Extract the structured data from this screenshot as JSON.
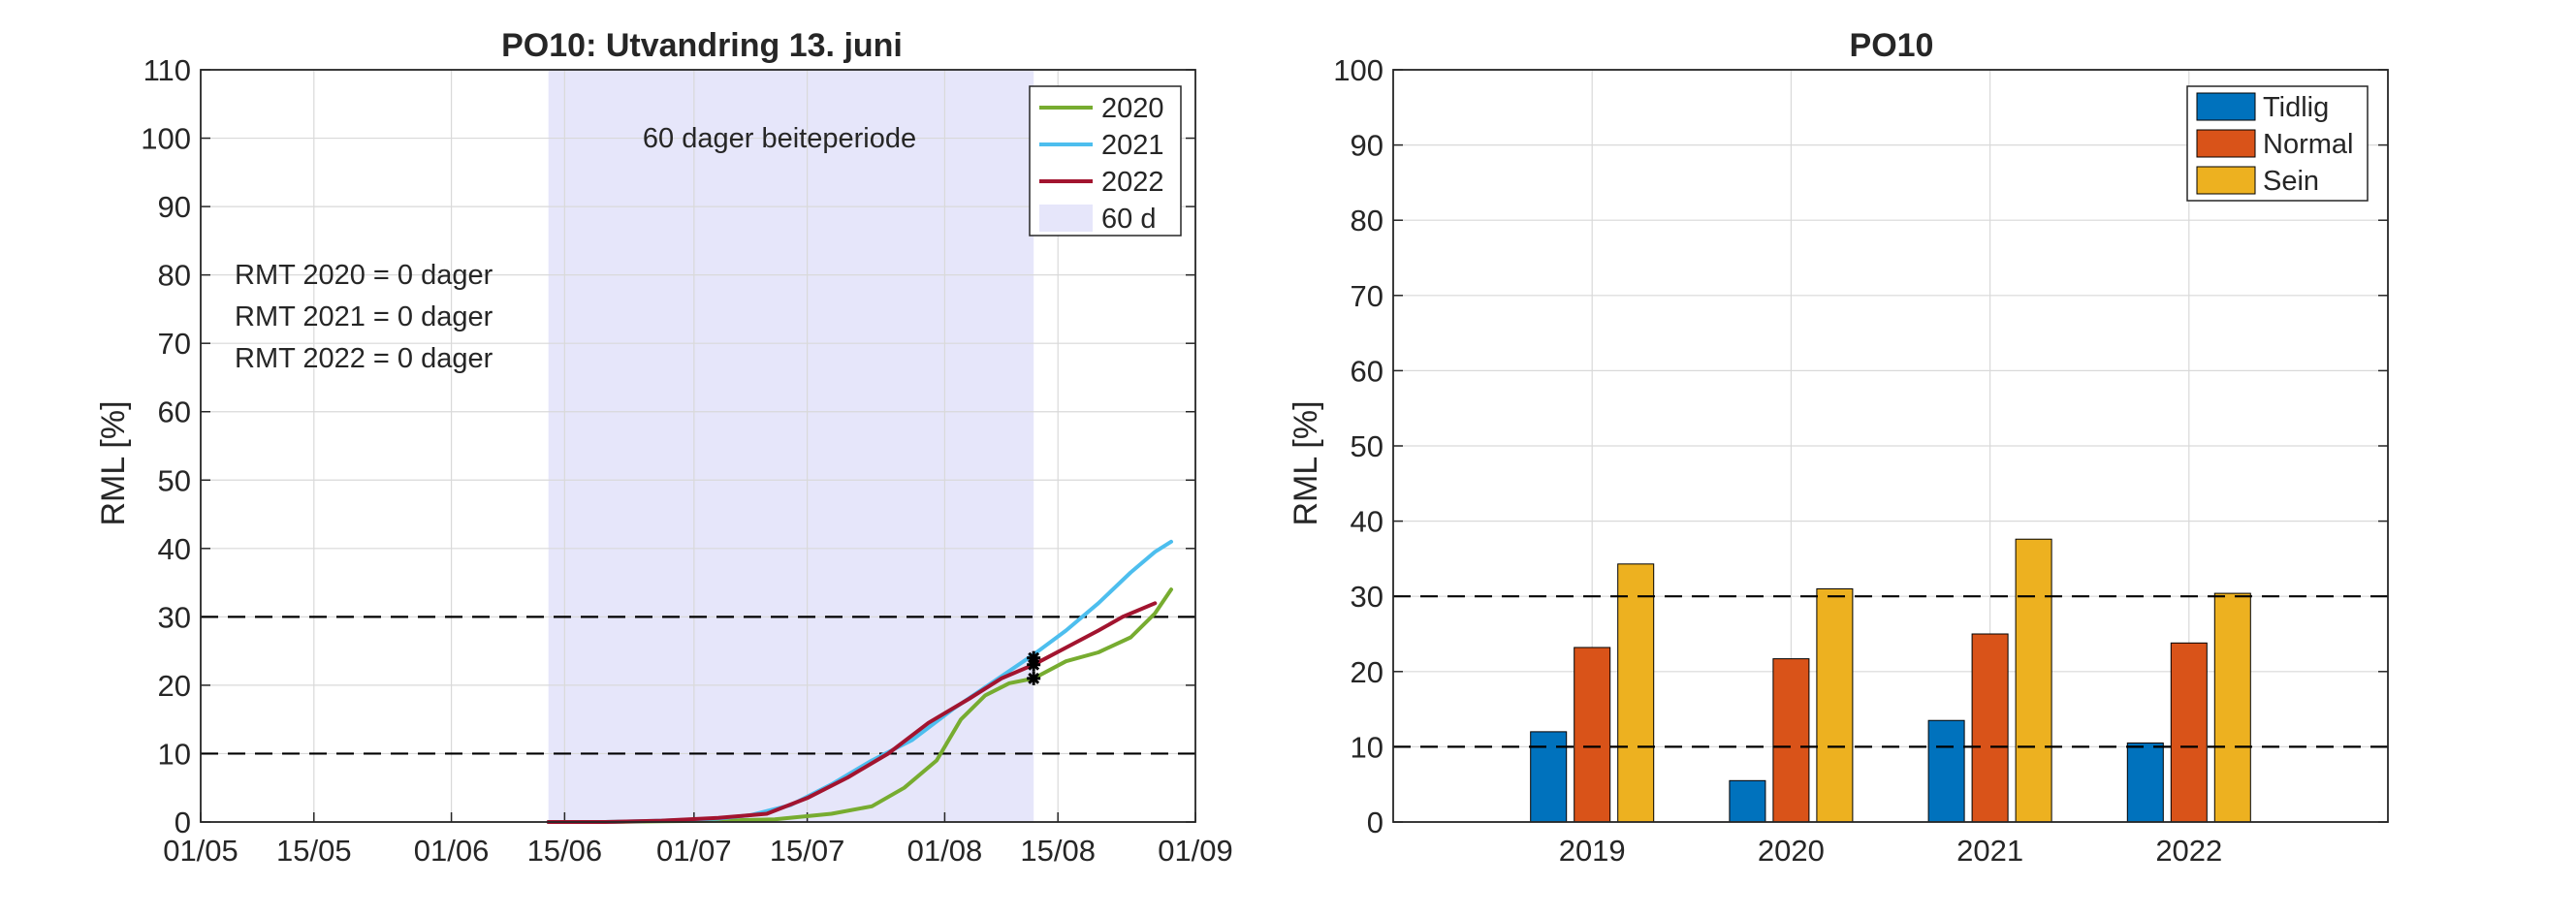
{
  "chart_data": [
    {
      "type": "line",
      "title": "PO10: Utvandring 13. juni",
      "xlabel": "",
      "ylabel": "RML [%]",
      "xlim": [
        "2000-05-01",
        "2000-09-01"
      ],
      "xtick_labels": [
        "01/05",
        "15/05",
        "01/06",
        "15/06",
        "01/07",
        "15/07",
        "01/08",
        "15/08",
        "01/09"
      ],
      "ylim": [
        0,
        110
      ],
      "ytick_labels": [
        "0",
        "10",
        "20",
        "30",
        "40",
        "50",
        "60",
        "70",
        "80",
        "90",
        "100",
        "110"
      ],
      "grid": true,
      "legend_position": "top-right",
      "shaded_region": {
        "x": [
          "2000-06-13",
          "2000-08-12"
        ],
        "label": "60 d",
        "color": "#e6e6fa"
      },
      "shaded_label": "60 dager beiteperiode",
      "hlines": [
        10,
        30
      ],
      "annotations": [
        "RMT 2020 = 0 dager",
        "RMT 2021 = 0 dager",
        "RMT 2022 = 0 dager"
      ],
      "markers": [
        {
          "series": "2020",
          "x": "2000-08-12",
          "y": 21
        },
        {
          "series": "2021",
          "x": "2000-08-12",
          "y": 24
        },
        {
          "series": "2022",
          "x": "2000-08-12",
          "y": 23
        }
      ],
      "series": [
        {
          "name": "2020",
          "color": "#77ac30",
          "x": [
            "2000-06-13",
            "2000-06-20",
            "2000-06-27",
            "2000-07-04",
            "2000-07-11",
            "2000-07-18",
            "2000-07-23",
            "2000-07-27",
            "2000-07-31",
            "2000-08-03",
            "2000-08-06",
            "2000-08-09",
            "2000-08-12",
            "2000-08-16",
            "2000-08-20",
            "2000-08-24",
            "2000-08-27",
            "2000-08-29"
          ],
          "values": [
            0,
            0,
            0.1,
            0.2,
            0.4,
            1.2,
            2.3,
            5,
            9,
            15,
            18.5,
            20.3,
            21,
            23.5,
            24.8,
            27,
            30.5,
            34
          ]
        },
        {
          "name": "2021",
          "color": "#4dbeee",
          "x": [
            "2000-06-13",
            "2000-06-20",
            "2000-06-27",
            "2000-07-04",
            "2000-07-08",
            "2000-07-13",
            "2000-07-18",
            "2000-07-23",
            "2000-07-28",
            "2000-08-02",
            "2000-08-07",
            "2000-08-12",
            "2000-08-16",
            "2000-08-20",
            "2000-08-24",
            "2000-08-27",
            "2000-08-29"
          ],
          "values": [
            0,
            0,
            0.2,
            0.5,
            1,
            2.5,
            5.5,
            9,
            12,
            16.5,
            20.5,
            24.5,
            28,
            32,
            36.5,
            39.5,
            41
          ]
        },
        {
          "name": "2022",
          "color": "#a2142f",
          "x": [
            "2000-06-13",
            "2000-06-20",
            "2000-06-27",
            "2000-07-04",
            "2000-07-10",
            "2000-07-15",
            "2000-07-20",
            "2000-07-25",
            "2000-07-30",
            "2000-08-04",
            "2000-08-08",
            "2000-08-12",
            "2000-08-16",
            "2000-08-20",
            "2000-08-23",
            "2000-08-27"
          ],
          "values": [
            0,
            0,
            0.2,
            0.6,
            1.2,
            3.5,
            6.5,
            10,
            14.5,
            18,
            21,
            23,
            25.5,
            28,
            30,
            32
          ]
        }
      ]
    },
    {
      "type": "bar",
      "title": "PO10",
      "xlabel": "",
      "ylabel": "RML [%]",
      "categories": [
        "2019",
        "2020",
        "2021",
        "2022"
      ],
      "ylim": [
        0,
        100
      ],
      "ytick_labels": [
        "0",
        "10",
        "20",
        "30",
        "40",
        "50",
        "60",
        "70",
        "80",
        "90",
        "100"
      ],
      "grid": true,
      "legend_position": "top-right",
      "hlines": [
        10,
        30
      ],
      "series": [
        {
          "name": "Tidlig",
          "color": "#0072bd",
          "values": [
            12,
            5.5,
            13.5,
            10.5
          ]
        },
        {
          "name": "Normal",
          "color": "#d95319",
          "values": [
            23.2,
            21.7,
            25,
            23.8
          ]
        },
        {
          "name": "Sein",
          "color": "#edb120",
          "values": [
            34.3,
            31,
            37.6,
            30.4
          ]
        }
      ]
    }
  ]
}
